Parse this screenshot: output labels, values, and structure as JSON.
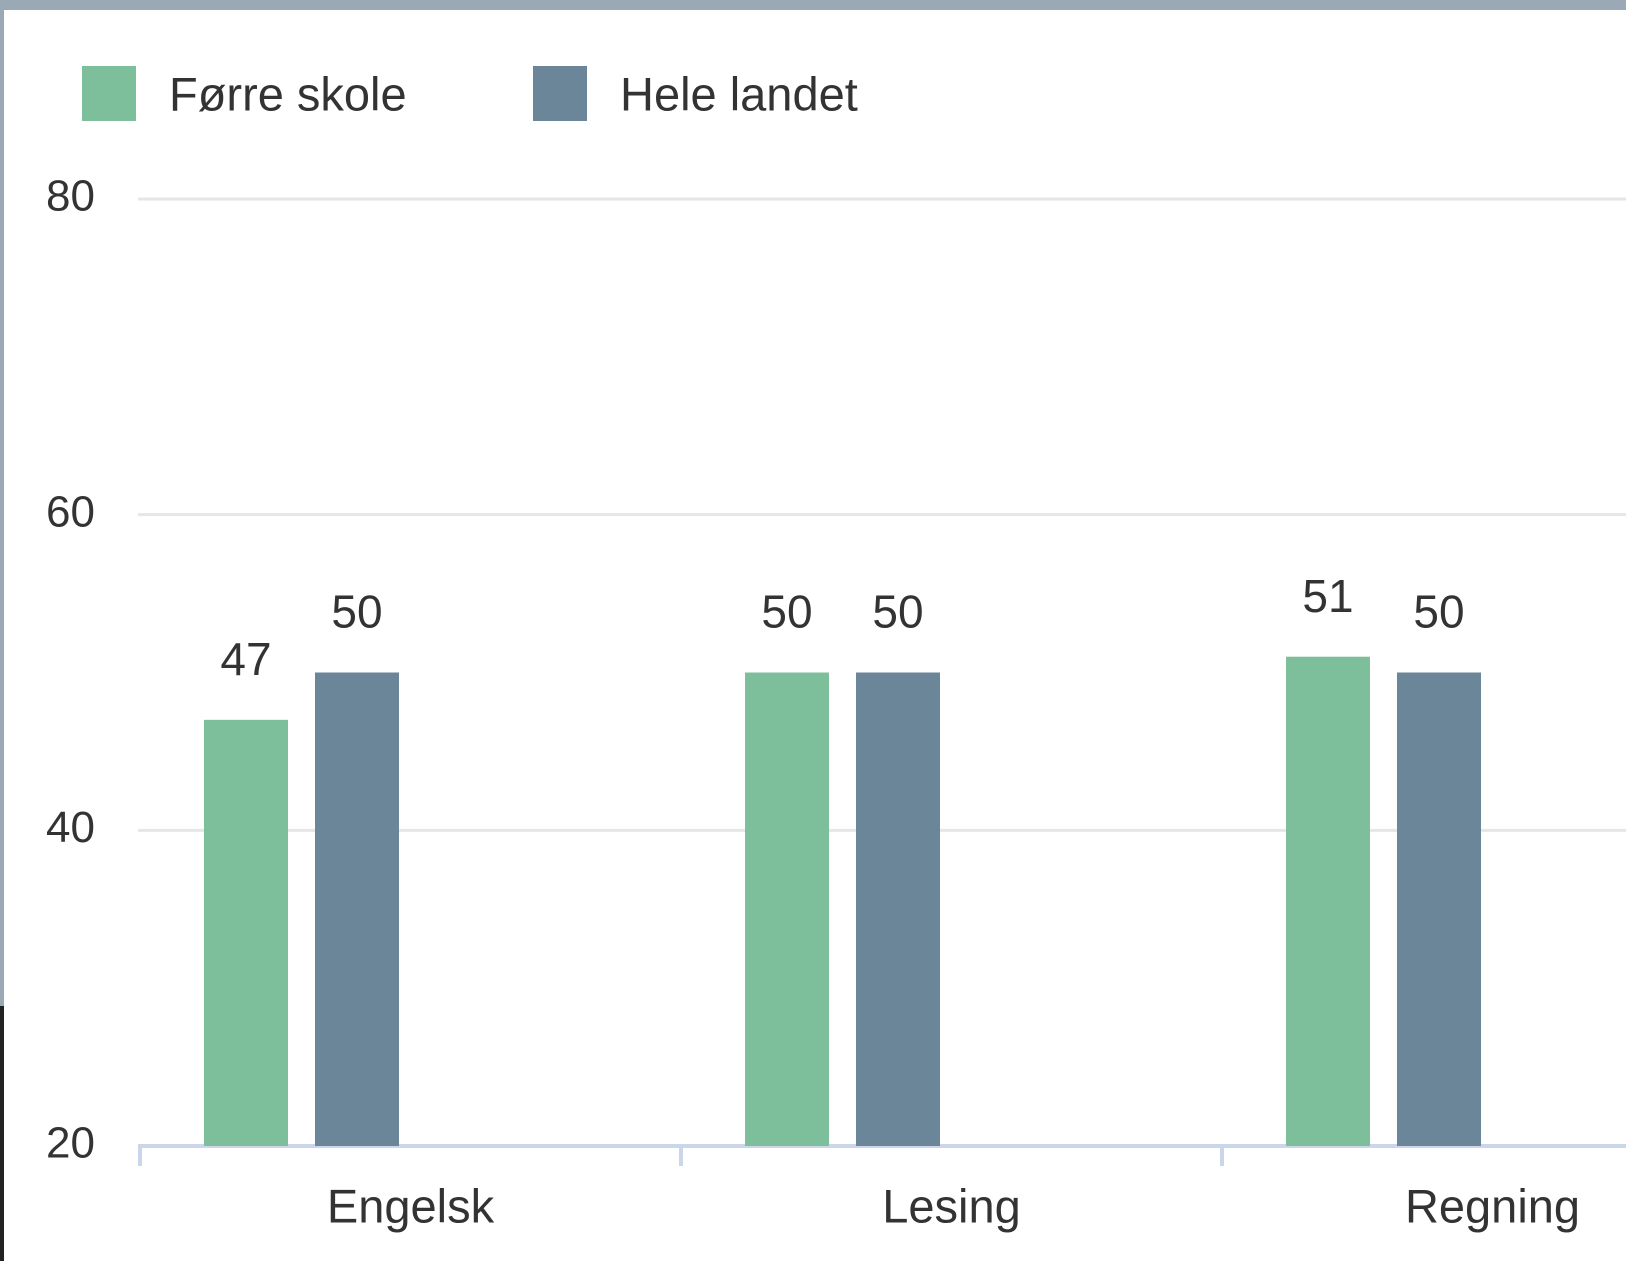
{
  "chart_data": {
    "type": "bar",
    "categories": [
      "Engelsk",
      "Lesing",
      "Regning"
    ],
    "series": [
      {
        "name": "Førre skole",
        "color": "#7dbf9b",
        "values": [
          47,
          50,
          51
        ]
      },
      {
        "name": "Hele landet",
        "color": "#6b8599",
        "values": [
          50,
          50,
          50
        ]
      }
    ],
    "ylim": [
      20,
      80
    ],
    "yticks": [
      20,
      40,
      60,
      80
    ],
    "grid": true,
    "legend": "top-left",
    "data_labels": true
  }
}
